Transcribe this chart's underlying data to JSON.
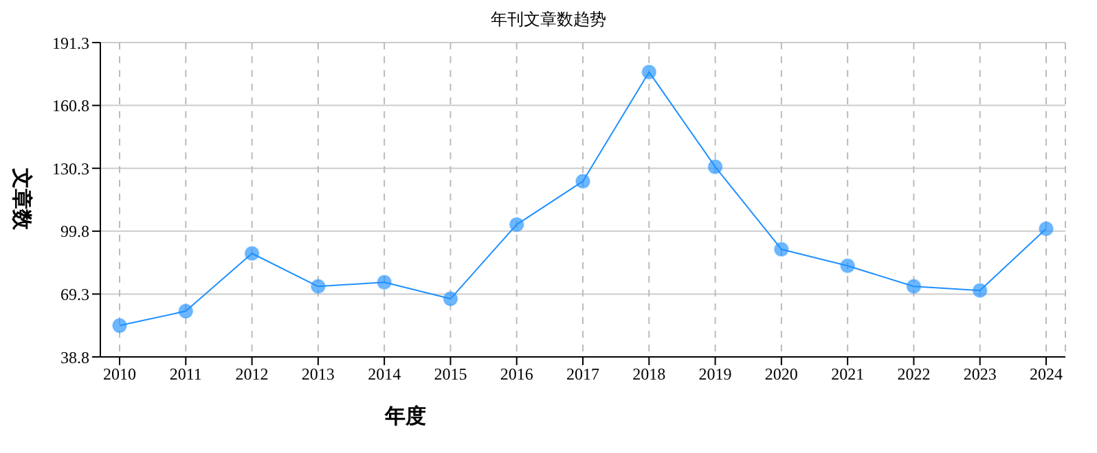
{
  "chart_data": {
    "type": "line",
    "title": "年刊文章数趋势",
    "xlabel": "年度",
    "ylabel": "文章数",
    "categories": [
      "2010",
      "2011",
      "2012",
      "2013",
      "2014",
      "2015",
      "2016",
      "2017",
      "2018",
      "2019",
      "2020",
      "2021",
      "2022",
      "2023",
      "2024"
    ],
    "series": [
      {
        "color": "#1e90ff",
        "values": [
          54,
          61,
          89,
          73,
          75,
          67,
          103,
          124,
          177,
          131,
          91,
          83,
          73,
          71,
          101
        ]
      }
    ],
    "ylim": [
      38.8,
      191.3
    ],
    "yticks": [
      38.8,
      69.3,
      99.8,
      130.3,
      160.8,
      191.3
    ],
    "grid": true,
    "marker": "circle",
    "line_style": "solid",
    "legend": false
  }
}
